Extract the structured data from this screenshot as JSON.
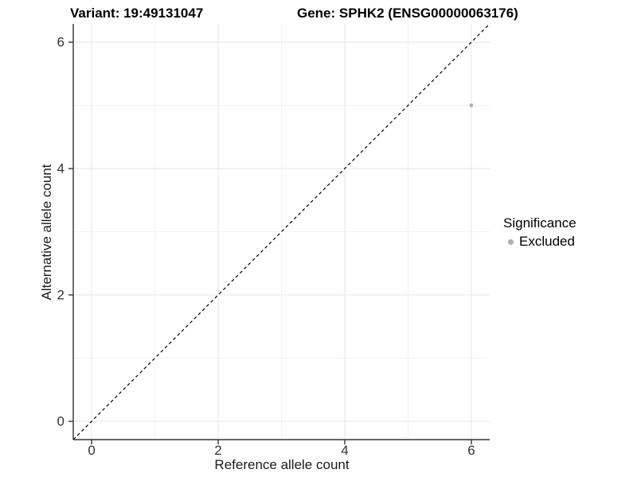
{
  "header": {
    "variant_title": "Variant: 19:49131047",
    "gene_title": "Gene: SPHK2 (ENSG00000063176)"
  },
  "axes": {
    "x_label": "Reference allele count",
    "y_label": "Alternative allele count"
  },
  "legend": {
    "title": "Significance",
    "items": [
      {
        "label": "Excluded",
        "color": "#b0b0b0"
      }
    ]
  },
  "style": {
    "background": "#ffffff",
    "grid_major": "#e6e6e6",
    "grid_minor": "#f3f3f3",
    "axis_line": "#333333",
    "tick_mark": "#333333",
    "tick_text": "#333333",
    "reference_line_color": "#000000",
    "point_color": "#b0b0b0"
  },
  "chart_data": {
    "type": "scatter",
    "titles": [
      "Variant: 19:49131047",
      "Gene: SPHK2 (ENSG00000063176)"
    ],
    "xlabel": "Reference allele count",
    "ylabel": "Alternative allele count",
    "xlim": [
      -0.29,
      6.29
    ],
    "ylim": [
      -0.29,
      6.29
    ],
    "x_ticks": [
      0,
      2,
      4,
      6
    ],
    "y_ticks": [
      0,
      2,
      4,
      6
    ],
    "x_minor_ticks": [
      1,
      3,
      5
    ],
    "y_minor_ticks": [
      1,
      3,
      5
    ],
    "grid": true,
    "legend_position": "right",
    "series": [
      {
        "name": "Excluded",
        "color": "#b0b0b0",
        "points": [
          {
            "x": 6,
            "y": 5
          }
        ]
      }
    ],
    "reference_line": {
      "kind": "identity",
      "slope": 1,
      "intercept": 0,
      "dashed": true,
      "color": "#000000"
    }
  }
}
